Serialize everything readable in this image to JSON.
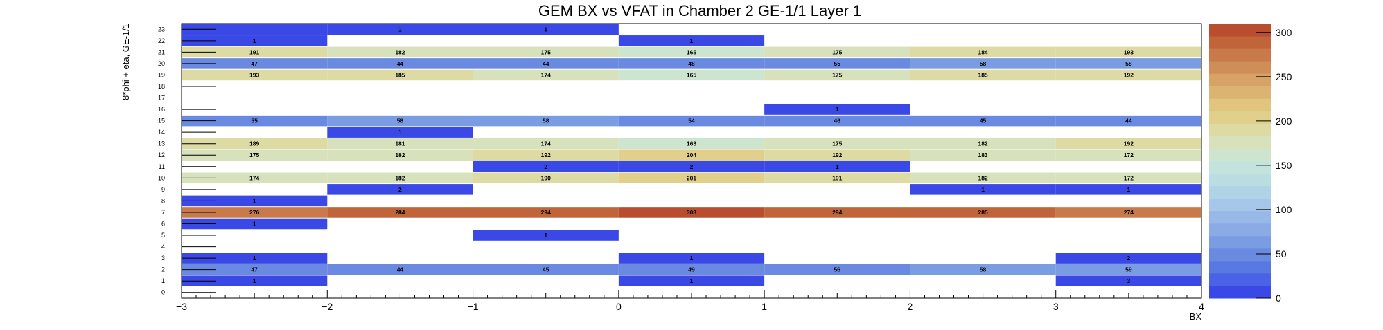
{
  "chart_data": {
    "type": "heatmap",
    "title": "GEM BX vs VFAT in Chamber 2 GE-1/1 Layer 1",
    "xlabel": "BX",
    "ylabel": "8*phi + eta, GE-1/1",
    "xlim": [
      -3,
      4
    ],
    "ylim": [
      0,
      24
    ],
    "x_ticks": [
      "−3",
      "−2",
      "−1",
      "0",
      "1",
      "2",
      "3",
      "4"
    ],
    "y_ticks": [
      "0",
      "1",
      "2",
      "3",
      "4",
      "5",
      "6",
      "7",
      "8",
      "9",
      "10",
      "11",
      "12",
      "13",
      "14",
      "15",
      "16",
      "17",
      "18",
      "19",
      "20",
      "21",
      "22",
      "23"
    ],
    "colorbar": {
      "min": 0,
      "max": 310,
      "ticks": [
        "0",
        "50",
        "100",
        "150",
        "200",
        "250",
        "300"
      ],
      "tick_values": [
        0,
        50,
        100,
        150,
        200,
        250,
        300
      ]
    },
    "x_bin_edges": [
      -3,
      -2,
      -1,
      0,
      1,
      2,
      3,
      4
    ],
    "cells": [
      {
        "x": -2.5,
        "y": 23,
        "v": 0
      },
      {
        "x": -1.5,
        "y": 23,
        "v": 1
      },
      {
        "x": -0.5,
        "y": 23,
        "v": 1
      },
      {
        "x": -2.5,
        "y": 22,
        "v": 1
      },
      {
        "x": 0.5,
        "y": 22,
        "v": 1
      },
      {
        "x": -2.5,
        "y": 21,
        "v": 191
      },
      {
        "x": -1.5,
        "y": 21,
        "v": 182
      },
      {
        "x": -0.5,
        "y": 21,
        "v": 175
      },
      {
        "x": 0.5,
        "y": 21,
        "v": 165
      },
      {
        "x": 1.5,
        "y": 21,
        "v": 175
      },
      {
        "x": 2.5,
        "y": 21,
        "v": 184
      },
      {
        "x": 3.5,
        "y": 21,
        "v": 193
      },
      {
        "x": -2.5,
        "y": 20,
        "v": 47
      },
      {
        "x": -1.5,
        "y": 20,
        "v": 44
      },
      {
        "x": -0.5,
        "y": 20,
        "v": 44
      },
      {
        "x": 0.5,
        "y": 20,
        "v": 48
      },
      {
        "x": 1.5,
        "y": 20,
        "v": 55
      },
      {
        "x": 2.5,
        "y": 20,
        "v": 58
      },
      {
        "x": 3.5,
        "y": 20,
        "v": 58
      },
      {
        "x": -2.5,
        "y": 19,
        "v": 193
      },
      {
        "x": -1.5,
        "y": 19,
        "v": 185
      },
      {
        "x": -0.5,
        "y": 19,
        "v": 174
      },
      {
        "x": 0.5,
        "y": 19,
        "v": 165
      },
      {
        "x": 1.5,
        "y": 19,
        "v": 175
      },
      {
        "x": 2.5,
        "y": 19,
        "v": 185
      },
      {
        "x": 3.5,
        "y": 19,
        "v": 192
      },
      {
        "x": 1.5,
        "y": 16,
        "v": 1
      },
      {
        "x": -2.5,
        "y": 15,
        "v": 55
      },
      {
        "x": -1.5,
        "y": 15,
        "v": 58
      },
      {
        "x": -0.5,
        "y": 15,
        "v": 58
      },
      {
        "x": 0.5,
        "y": 15,
        "v": 54
      },
      {
        "x": 1.5,
        "y": 15,
        "v": 46
      },
      {
        "x": 2.5,
        "y": 15,
        "v": 45
      },
      {
        "x": 3.5,
        "y": 15,
        "v": 44
      },
      {
        "x": -1.5,
        "y": 14,
        "v": 1
      },
      {
        "x": -2.5,
        "y": 13,
        "v": 189
      },
      {
        "x": -1.5,
        "y": 13,
        "v": 181
      },
      {
        "x": -0.5,
        "y": 13,
        "v": 174
      },
      {
        "x": 0.5,
        "y": 13,
        "v": 163
      },
      {
        "x": 1.5,
        "y": 13,
        "v": 175
      },
      {
        "x": 2.5,
        "y": 13,
        "v": 182
      },
      {
        "x": 3.5,
        "y": 13,
        "v": 192
      },
      {
        "x": -2.5,
        "y": 12,
        "v": 175
      },
      {
        "x": -1.5,
        "y": 12,
        "v": 182
      },
      {
        "x": -0.5,
        "y": 12,
        "v": 192
      },
      {
        "x": 0.5,
        "y": 12,
        "v": 204
      },
      {
        "x": 1.5,
        "y": 12,
        "v": 192
      },
      {
        "x": 2.5,
        "y": 12,
        "v": 183
      },
      {
        "x": 3.5,
        "y": 12,
        "v": 172
      },
      {
        "x": -0.5,
        "y": 11,
        "v": 2
      },
      {
        "x": 0.5,
        "y": 11,
        "v": 2
      },
      {
        "x": 1.5,
        "y": 11,
        "v": 1
      },
      {
        "x": -2.5,
        "y": 10,
        "v": 174
      },
      {
        "x": -1.5,
        "y": 10,
        "v": 182
      },
      {
        "x": -0.5,
        "y": 10,
        "v": 190
      },
      {
        "x": 0.5,
        "y": 10,
        "v": 201
      },
      {
        "x": 1.5,
        "y": 10,
        "v": 191
      },
      {
        "x": 2.5,
        "y": 10,
        "v": 182
      },
      {
        "x": 3.5,
        "y": 10,
        "v": 172
      },
      {
        "x": -1.5,
        "y": 9,
        "v": 2
      },
      {
        "x": 2.5,
        "y": 9,
        "v": 1
      },
      {
        "x": 3.5,
        "y": 9,
        "v": 1
      },
      {
        "x": -2.5,
        "y": 8,
        "v": 1
      },
      {
        "x": -2.5,
        "y": 7,
        "v": 276
      },
      {
        "x": -1.5,
        "y": 7,
        "v": 284
      },
      {
        "x": -0.5,
        "y": 7,
        "v": 294
      },
      {
        "x": 0.5,
        "y": 7,
        "v": 303
      },
      {
        "x": 1.5,
        "y": 7,
        "v": 294
      },
      {
        "x": 2.5,
        "y": 7,
        "v": 285
      },
      {
        "x": 3.5,
        "y": 7,
        "v": 274
      },
      {
        "x": -2.5,
        "y": 6,
        "v": 1
      },
      {
        "x": -0.5,
        "y": 5,
        "v": 1
      },
      {
        "x": -2.5,
        "y": 3,
        "v": 1
      },
      {
        "x": 0.5,
        "y": 3,
        "v": 1
      },
      {
        "x": 3.5,
        "y": 3,
        "v": 2
      },
      {
        "x": -2.5,
        "y": 2,
        "v": 47
      },
      {
        "x": -1.5,
        "y": 2,
        "v": 44
      },
      {
        "x": -0.5,
        "y": 2,
        "v": 45
      },
      {
        "x": 0.5,
        "y": 2,
        "v": 49
      },
      {
        "x": 1.5,
        "y": 2,
        "v": 56
      },
      {
        "x": 2.5,
        "y": 2,
        "v": 58
      },
      {
        "x": 3.5,
        "y": 2,
        "v": 59
      },
      {
        "x": -2.5,
        "y": 1,
        "v": 1
      },
      {
        "x": 0.5,
        "y": 1,
        "v": 1
      },
      {
        "x": 3.5,
        "y": 1,
        "v": 3
      }
    ],
    "palette": [
      "#3a49e6",
      "#4a62e6",
      "#5a78e2",
      "#6a8ae2",
      "#7a9ce2",
      "#8aabe6",
      "#98b9e8",
      "#a6c6ea",
      "#b1d3e6",
      "#badde2",
      "#c3e3dc",
      "#cde4cf",
      "#d7e2bc",
      "#dedaa4",
      "#e1d08c",
      "#e1c47e",
      "#dcb472",
      "#d6a266",
      "#cf8e58",
      "#c97a4a",
      "#c0643a",
      "#b84e2e"
    ]
  }
}
